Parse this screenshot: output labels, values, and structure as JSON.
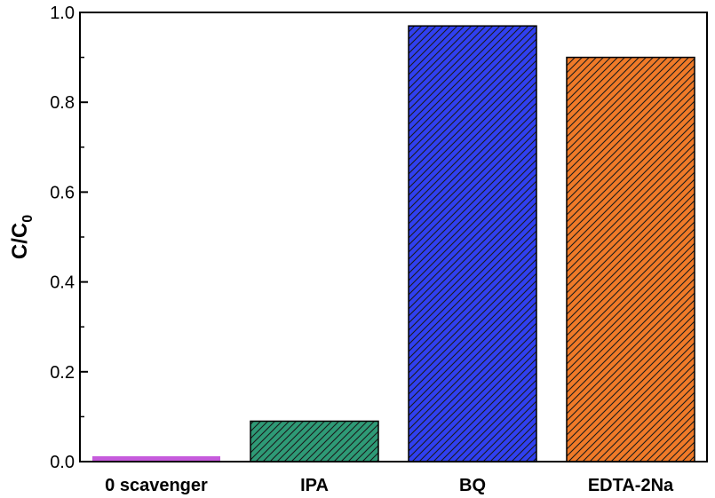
{
  "chart_data": {
    "type": "bar",
    "categories": [
      "0 scavenger",
      "IPA",
      "BQ",
      "EDTA-2Na"
    ],
    "values": [
      0.01,
      0.09,
      0.97,
      0.9
    ],
    "colors": [
      "#c65bdc",
      "#2e9a76",
      "#3040f0",
      "#f07a28"
    ],
    "bar_pattern": "diagonal-hatch",
    "title": "",
    "xlabel": "",
    "ylabel": {
      "main": "C/C",
      "sub": "0"
    },
    "ylim": [
      0,
      1.0
    ],
    "yticks": [
      "0.0",
      "0.2",
      "0.4",
      "0.6",
      "0.8",
      "1.0"
    ],
    "grid": false,
    "legend": "none"
  }
}
